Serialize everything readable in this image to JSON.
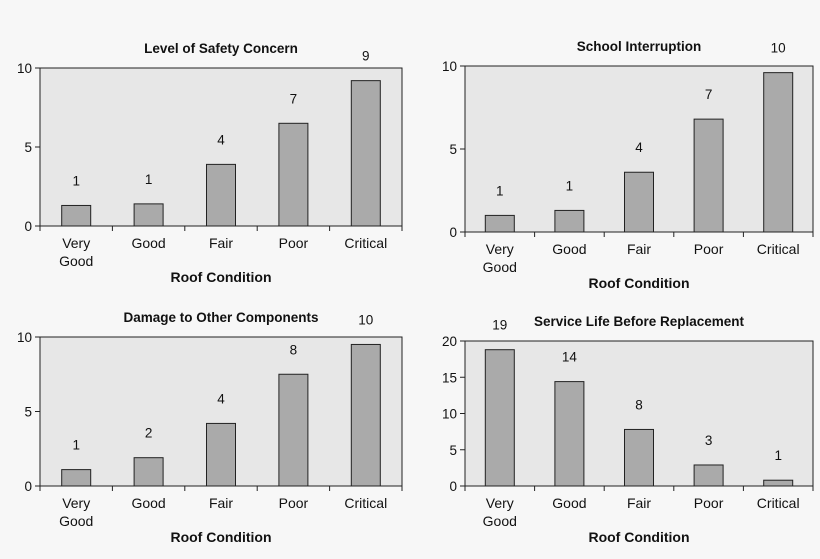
{
  "colors": {
    "plot_bg": "#e7e7e7",
    "bar_fill": "#aaaaaa",
    "bar_stroke": "#222222",
    "axis": "#222222"
  },
  "chart_data": [
    {
      "type": "bar",
      "title": "Level of Safety Concern",
      "xlabel": "Roof Condition",
      "ylabel": "",
      "categories": [
        "Very Good",
        "Good",
        "Fair",
        "Poor",
        "Critical"
      ],
      "category_lines": [
        [
          "Very",
          "Good"
        ],
        [
          "Good"
        ],
        [
          "Fair"
        ],
        [
          "Poor"
        ],
        [
          "Critical"
        ]
      ],
      "values": [
        1.3,
        1.4,
        3.9,
        6.5,
        9.2
      ],
      "data_labels": [
        "1",
        "1",
        "4",
        "7",
        "9"
      ],
      "ylim": [
        0,
        10
      ],
      "yticks": [
        0,
        5,
        10
      ],
      "grid": false,
      "legend": "none"
    },
    {
      "type": "bar",
      "title": "School Interruption",
      "xlabel": "Roof Condition",
      "ylabel": "",
      "categories": [
        "Very Good",
        "Good",
        "Fair",
        "Poor",
        "Critical"
      ],
      "category_lines": [
        [
          "Very",
          "Good"
        ],
        [
          "Good"
        ],
        [
          "Fair"
        ],
        [
          "Poor"
        ],
        [
          "Critical"
        ]
      ],
      "values": [
        1.0,
        1.3,
        3.6,
        6.8,
        9.6
      ],
      "data_labels": [
        "1",
        "1",
        "4",
        "7",
        "10"
      ],
      "ylim": [
        0,
        10
      ],
      "yticks": [
        0,
        5,
        10
      ],
      "grid": false,
      "legend": "none"
    },
    {
      "type": "bar",
      "title": "Damage to Other Components",
      "xlabel": "Roof Condition",
      "ylabel": "",
      "categories": [
        "Very Good",
        "Good",
        "Fair",
        "Poor",
        "Critical"
      ],
      "category_lines": [
        [
          "Very",
          "Good"
        ],
        [
          "Good"
        ],
        [
          "Fair"
        ],
        [
          "Poor"
        ],
        [
          "Critical"
        ]
      ],
      "values": [
        1.1,
        1.9,
        4.2,
        7.5,
        9.5
      ],
      "data_labels": [
        "1",
        "2",
        "4",
        "8",
        "10"
      ],
      "ylim": [
        0,
        10
      ],
      "yticks": [
        0,
        5,
        10
      ],
      "grid": false,
      "legend": "none"
    },
    {
      "type": "bar",
      "title": "Service Life Before Replacement",
      "xlabel": "Roof Condition",
      "ylabel": "",
      "categories": [
        "Very Good",
        "Good",
        "Fair",
        "Poor",
        "Critical"
      ],
      "category_lines": [
        [
          "Very",
          "Good"
        ],
        [
          "Good"
        ],
        [
          "Fair"
        ],
        [
          "Poor"
        ],
        [
          "Critical"
        ]
      ],
      "values": [
        18.8,
        14.4,
        7.8,
        2.9,
        0.8
      ],
      "data_labels": [
        "19",
        "14",
        "8",
        "3",
        "1"
      ],
      "ylim": [
        0,
        20
      ],
      "yticks": [
        0,
        5,
        10,
        15,
        20
      ],
      "grid": false,
      "legend": "none"
    }
  ]
}
